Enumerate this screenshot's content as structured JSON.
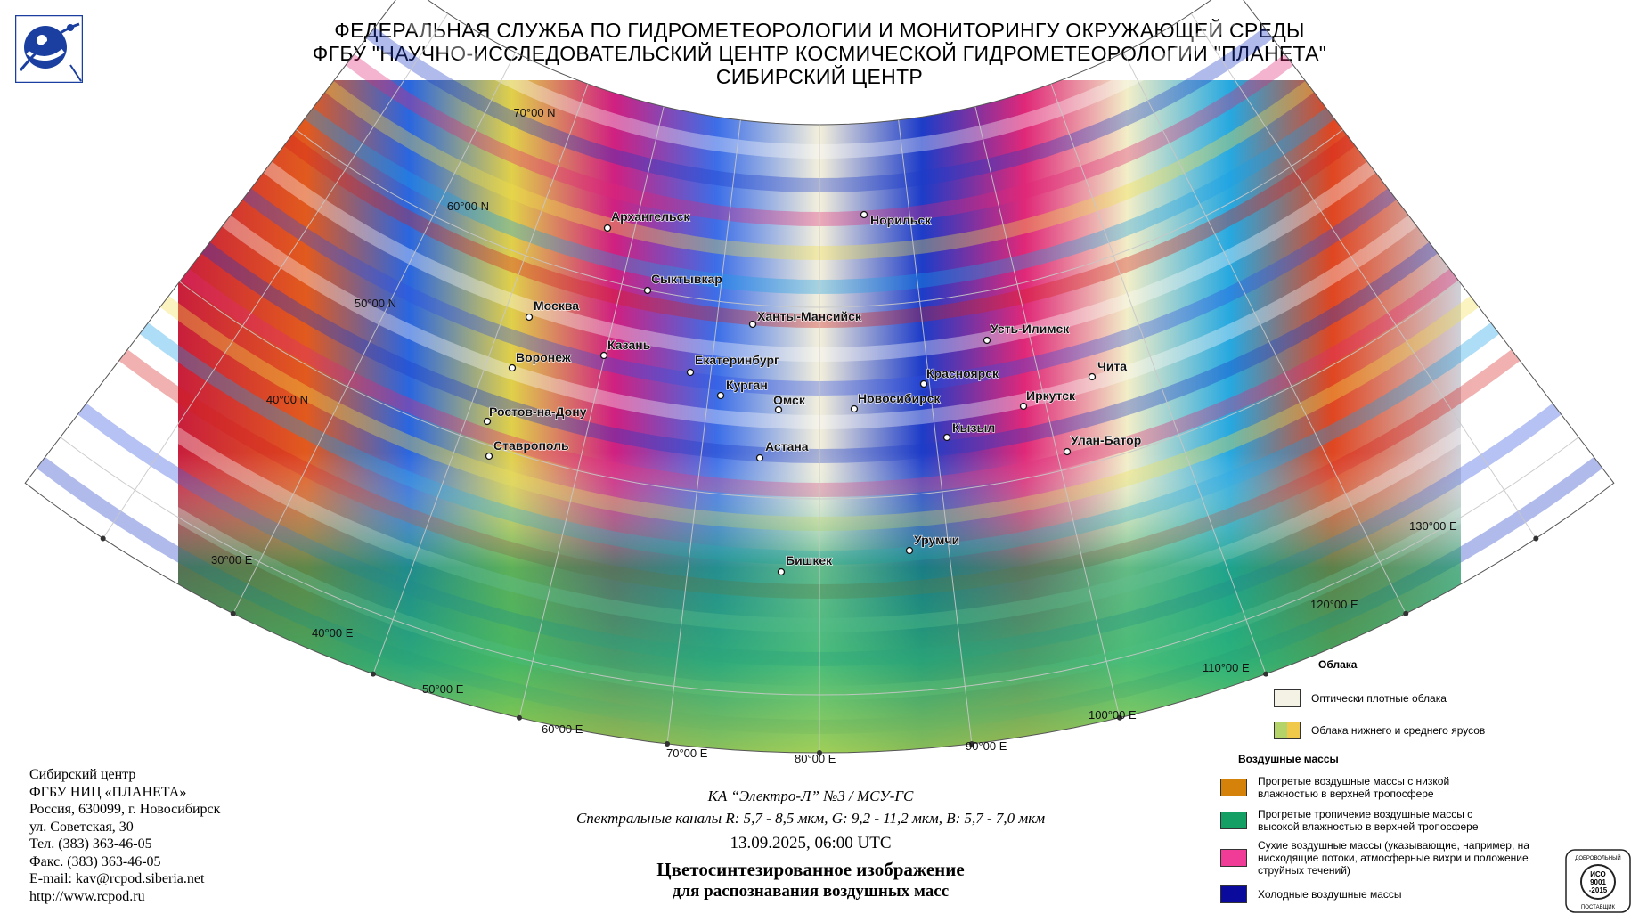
{
  "header": {
    "line1": "ФЕДЕРАЛЬНАЯ СЛУЖБА ПО ГИДРОМЕТЕОРОЛОГИИ И МОНИТОРИНГУ ОКРУЖАЮЩЕЙ СРЕДЫ",
    "line2": "ФГБУ \"НАУЧНО-ИССЛЕДОВАТЕЛЬСКИЙ ЦЕНТР КОСМИЧЕСКОЙ ГИДРОМЕТЕОРОЛОГИИ \"ПЛАНЕТА\"",
    "line3": "СИБИРСКИЙ ЦЕНТР"
  },
  "logo_icon": "satellite-orbit-logo-icon",
  "map": {
    "lat_labels": [
      "70°00 N",
      "60°00 N",
      "50°00 N",
      "40°00 N"
    ],
    "lon_labels": [
      "30°00 E",
      "40°00 E",
      "50°00 E",
      "60°00 E",
      "70°00 E",
      "80°00 E",
      "90°00 E",
      "100°00 E",
      "110°00 E",
      "120°00 E",
      "130°00 E"
    ],
    "cities": [
      "Архангельск",
      "Норильск",
      "Сыктывкар",
      "Москва",
      "Ханты-Мансийск",
      "Казань",
      "Усть-Илимск",
      "Воронеж",
      "Екатеринбург",
      "Чита",
      "Красноярск",
      "Курган",
      "Иркутск",
      "Омск",
      "Новосибирск",
      "Ростов-на-Дону",
      "Кызыл",
      "Улан-Батор",
      "Астана",
      "Ставрополь",
      "Урумчи",
      "Бишкек"
    ]
  },
  "legend": {
    "clouds_title": "Облака",
    "clouds": [
      {
        "label": "Оптически плотные облака",
        "color": "#f4f2e4"
      },
      {
        "label": "Облака нижнего и среднего ярусов",
        "colors": [
          "#b4d46a",
          "#f0c84a"
        ]
      }
    ],
    "air_title": "Воздушные массы",
    "air": [
      {
        "label": "Прогретые воздушные массы с низкой влажностью в верхней тропосфере",
        "color": "#d4820a"
      },
      {
        "label": "Прогретые тропичекие воздушные массы с высокой влажностью в верхней тропосфере",
        "color": "#14a064"
      },
      {
        "label": "Сухие воздушные массы (указывающие, например, на нисходящие потоки, атмосферные вихри и положение струйных течений)",
        "color": "#f03c96"
      },
      {
        "label": "Холодные воздушные массы",
        "color": "#0a0a9c"
      }
    ]
  },
  "address": [
    "Сибирский центр",
    "ФГБУ НИЦ «ПЛАНЕТА»",
    "Россия, 630099, г. Новосибирск",
    "ул. Советская, 30",
    "Тел. (383) 363-46-05",
    "Факс. (383) 363-46-05",
    "E-mail: kav@rcpod.siberia.net",
    "http://www.rcpod.ru"
  ],
  "caption": {
    "satellite": "КА “Электро-Л” №3 / МСУ-ГС",
    "channels": "Спектральные каналы R: 5,7 - 8,5 мкм, G: 9,2 - 11,2 мкм, B: 5,7 - 7,0 мкм",
    "datetime": "13.09.2025, 06:00 UTC",
    "title1": "Цветосинтезированное изображение",
    "title2": "для распознавания воздушных масс"
  },
  "cert": {
    "top": "ДОБРОВОЛЬНЫЙ",
    "line1": "ИСО",
    "line2": "9001",
    "line3": "-2015",
    "bottom": "ПОСТАВЩИК"
  }
}
